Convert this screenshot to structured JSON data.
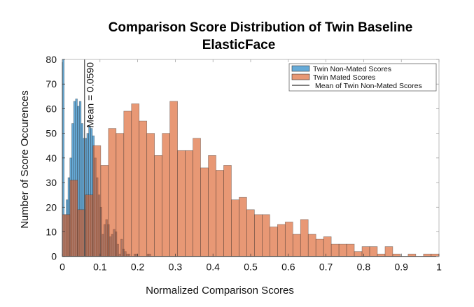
{
  "chart_data": {
    "type": "bar",
    "title": "Comparison Score Distribution of Twin Baseline",
    "subtitle": "ElasticFace",
    "xlabel": "Normalized  Comparison Scores",
    "ylabel": "Number of Score Occurences",
    "xlim": [
      0,
      1
    ],
    "ylim": [
      0,
      80
    ],
    "xticks": [
      "0",
      "0.1",
      "0.2",
      "0.3",
      "0.4",
      "0.5",
      "0.6",
      "0.7",
      "0.8",
      "0.9",
      "1"
    ],
    "yticks": [
      "0",
      "10",
      "20",
      "30",
      "40",
      "50",
      "60",
      "70",
      "80"
    ],
    "grid": false,
    "legend_placement": "top-right",
    "series": [
      {
        "name": "Twin Non-Mated Scores",
        "color": "#0072BD",
        "bin_start": 0,
        "bin_width": 0.005,
        "values": [
          81,
          17,
          23,
          32,
          40,
          54,
          63,
          64,
          61,
          63,
          54,
          48,
          48,
          50,
          53,
          52,
          49,
          40,
          32,
          25,
          20,
          9,
          13,
          15,
          13,
          8,
          9,
          11,
          10,
          5,
          1,
          7,
          3,
          2,
          1,
          1,
          0,
          0,
          1,
          1,
          0,
          0,
          0,
          0,
          0,
          1,
          1
        ]
      },
      {
        "name": "Twin Mated Scores",
        "color": "#D95319",
        "bin_start": 0,
        "bin_width": 0.0204,
        "values": [
          17,
          31,
          19,
          25,
          45,
          37,
          52,
          50,
          59,
          62,
          55,
          50,
          41,
          50,
          63,
          43,
          43,
          48,
          36,
          41,
          35,
          37,
          23,
          24,
          19,
          17,
          17,
          12,
          13,
          14,
          9,
          15,
          9,
          7,
          8,
          5,
          5,
          5,
          2,
          4,
          4,
          1,
          4,
          1,
          0,
          1,
          0,
          1,
          1
        ]
      }
    ],
    "mean_line": {
      "name": "Mean of Twin Non-Mated Scores",
      "x": 0.059,
      "label": "Mean = 0.0590",
      "color": "#555555"
    }
  }
}
